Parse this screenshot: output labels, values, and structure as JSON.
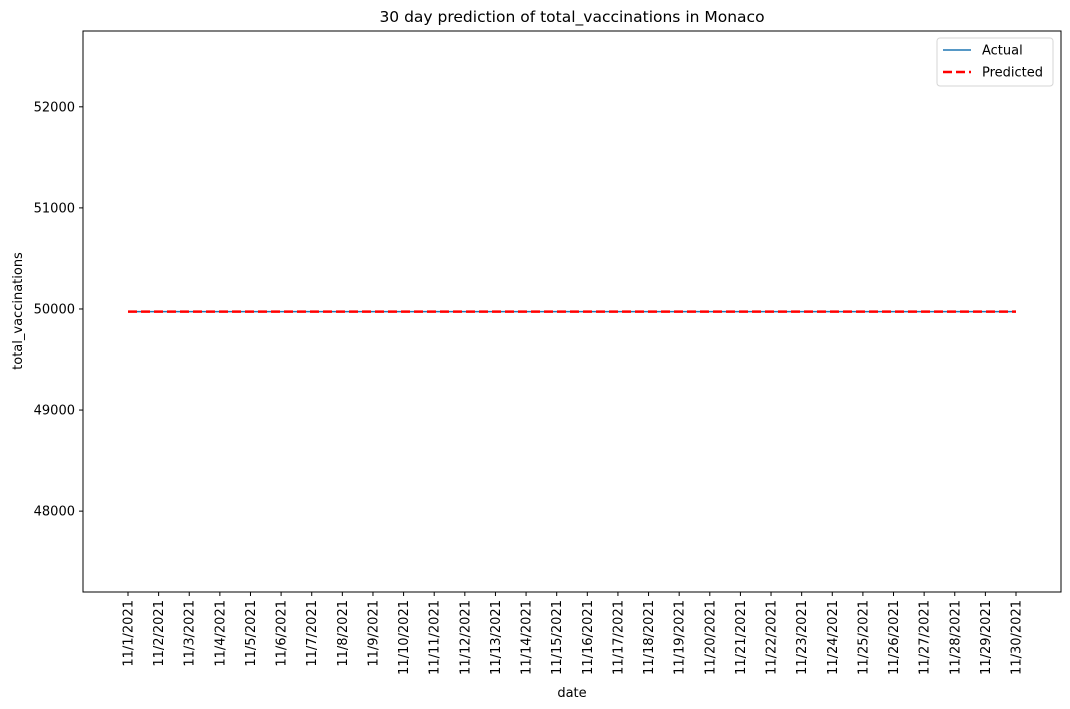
{
  "chart_data": {
    "type": "line",
    "title": "30 day prediction of total_vaccinations in Monaco",
    "xlabel": "date",
    "ylabel": "total_vaccinations",
    "categories": [
      "11/1/2021",
      "11/2/2021",
      "11/3/2021",
      "11/4/2021",
      "11/5/2021",
      "11/6/2021",
      "11/7/2021",
      "11/8/2021",
      "11/9/2021",
      "11/10/2021",
      "11/11/2021",
      "11/12/2021",
      "11/13/2021",
      "11/14/2021",
      "11/15/2021",
      "11/16/2021",
      "11/17/2021",
      "11/18/2021",
      "11/19/2021",
      "11/20/2021",
      "11/21/2021",
      "11/22/2021",
      "11/23/2021",
      "11/24/2021",
      "11/25/2021",
      "11/26/2021",
      "11/27/2021",
      "11/28/2021",
      "11/29/2021",
      "11/30/2021"
    ],
    "yticks": [
      48000,
      49000,
      50000,
      51000,
      52000
    ],
    "ylim": [
      47200,
      52750
    ],
    "series": [
      {
        "name": "Actual",
        "color": "#1f77b4",
        "style": "solid",
        "values": [
          49974,
          49974,
          49974,
          49974,
          49974,
          49974,
          49974,
          49974,
          49974,
          49974,
          49974,
          49974,
          49974,
          49974,
          49974,
          49974,
          49974,
          49974,
          49974,
          49974,
          49974,
          49974,
          49974,
          49974,
          49974,
          49974,
          49974,
          49974,
          49974,
          49974
        ]
      },
      {
        "name": "Predicted",
        "color": "#ff0000",
        "style": "dashed",
        "values": [
          49974,
          49974,
          49974,
          49974,
          49974,
          49974,
          49974,
          49974,
          49974,
          49974,
          49974,
          49974,
          49974,
          49974,
          49974,
          49974,
          49974,
          49974,
          49974,
          49974,
          49974,
          49974,
          49974,
          49974,
          49974,
          49974,
          49974,
          49974,
          49974,
          49974
        ]
      }
    ],
    "legend": "top-right",
    "grid": false
  }
}
